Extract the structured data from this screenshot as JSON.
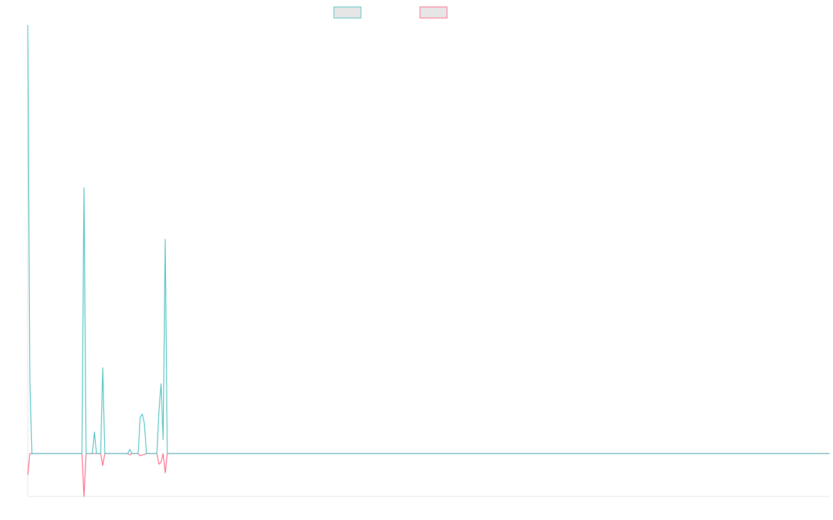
{
  "chart_data": {
    "type": "line",
    "legend": {
      "placement": "top-center",
      "entries": [
        {
          "name": "",
          "color": "#4bc0c0"
        },
        {
          "name": "",
          "color": "#ff6384"
        }
      ]
    },
    "grid": false,
    "x_count": 386,
    "ylim": [
      -100,
      1000
    ],
    "series": [
      {
        "name": "",
        "color": "#4bc0c0",
        "points": [
          [
            0,
            1000
          ],
          [
            1,
            170
          ],
          [
            2,
            0
          ],
          [
            26,
            0
          ],
          [
            27,
            620
          ],
          [
            28,
            0
          ],
          [
            31,
            0
          ],
          [
            32,
            50
          ],
          [
            33,
            0
          ],
          [
            35,
            0
          ],
          [
            36,
            200
          ],
          [
            37,
            0
          ],
          [
            48,
            0
          ],
          [
            49,
            10
          ],
          [
            50,
            0
          ],
          [
            53,
            0
          ],
          [
            54,
            85
          ],
          [
            55,
            92
          ],
          [
            56,
            70
          ],
          [
            57,
            0
          ],
          [
            62,
            0
          ],
          [
            63,
            100
          ],
          [
            64,
            163
          ],
          [
            65,
            32
          ],
          [
            66,
            500
          ],
          [
            67,
            0
          ],
          [
            385,
            0
          ]
        ]
      },
      {
        "name": "",
        "color": "#ff6384",
        "points": [
          [
            0,
            -50
          ],
          [
            1,
            0
          ],
          [
            26,
            0
          ],
          [
            27,
            -100
          ],
          [
            28,
            0
          ],
          [
            35,
            0
          ],
          [
            36,
            -28
          ],
          [
            37,
            0
          ],
          [
            48,
            0
          ],
          [
            49,
            -3
          ],
          [
            50,
            0
          ],
          [
            53,
            0
          ],
          [
            54,
            -5
          ],
          [
            55,
            -3
          ],
          [
            56,
            -2
          ],
          [
            57,
            0
          ],
          [
            62,
            0
          ],
          [
            63,
            -25
          ],
          [
            64,
            -20
          ],
          [
            65,
            0
          ],
          [
            66,
            -45
          ],
          [
            67,
            0
          ],
          [
            385,
            0
          ]
        ]
      }
    ]
  }
}
